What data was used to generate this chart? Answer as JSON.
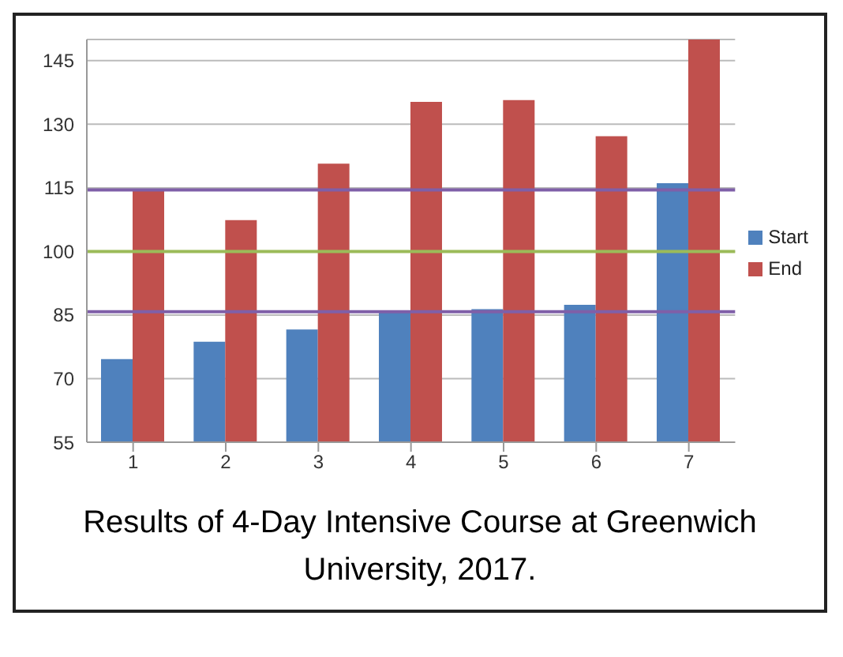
{
  "chart_data": {
    "type": "bar",
    "categories": [
      "1",
      "2",
      "3",
      "4",
      "5",
      "6",
      "7"
    ],
    "series": [
      {
        "name": "Start",
        "color": "#4f81bd",
        "values": [
          74.6,
          78.7,
          81.6,
          85.8,
          86.4,
          87.4,
          116.1
        ]
      },
      {
        "name": "End",
        "color": "#c0504d",
        "values": [
          114.5,
          107.4,
          120.7,
          135.3,
          135.7,
          127.2,
          150
        ]
      }
    ],
    "ylim": [
      55,
      150
    ],
    "yticks": [
      55,
      70,
      85,
      100,
      115,
      130,
      145
    ],
    "grid": "y",
    "legend": "right",
    "ref_lines": [
      {
        "axis": "y",
        "value": 114.5,
        "color": "#7f5fa8"
      },
      {
        "axis": "y",
        "value": 100,
        "color": "#9bbb59"
      },
      {
        "axis": "y",
        "value": 85.8,
        "color": "#7f5fa8"
      }
    ],
    "annotations": [
      "Results of 4-Day Intensive Course at Greenwich University, 2017."
    ]
  }
}
